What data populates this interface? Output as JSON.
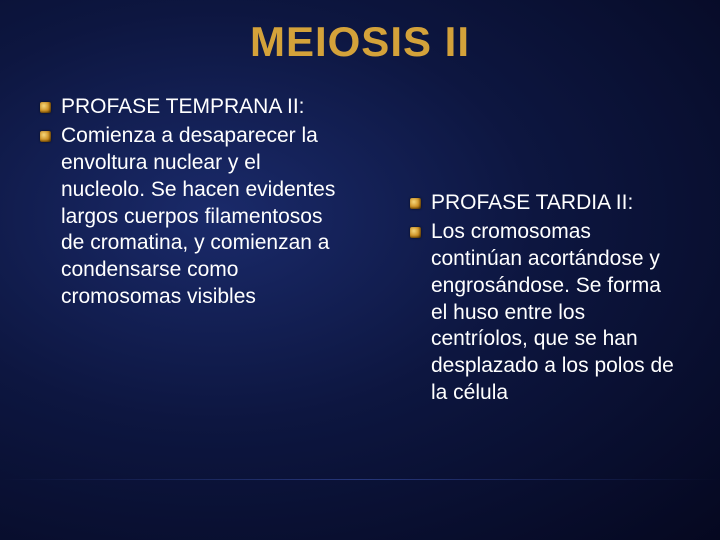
{
  "slide": {
    "title": "MEIOSIS II",
    "title_color": "#d4a23a",
    "title_fontsize": 42,
    "background_gradient": [
      "#1a2a6a",
      "#0d1640",
      "#050820"
    ],
    "bullet_color": "#c9891a",
    "text_color": "#ffffff",
    "text_fontsize": 21
  },
  "left_column": {
    "items": [
      {
        "text": "PROFASE TEMPRANA II:"
      },
      {
        "text": "Comienza a desaparecer la envoltura nuclear y el nucleolo. Se hacen evidentes largos cuerpos filamentosos de cromatina, y comienzan a condensarse como cromosomas visibles"
      }
    ]
  },
  "right_column": {
    "items": [
      {
        "text": "PROFASE TARDIA II:"
      },
      {
        "text": "Los cromosomas continúan acortándose y engrosándose. Se forma el huso entre los centríolos, que se han desplazado a los polos de la célula"
      }
    ]
  }
}
